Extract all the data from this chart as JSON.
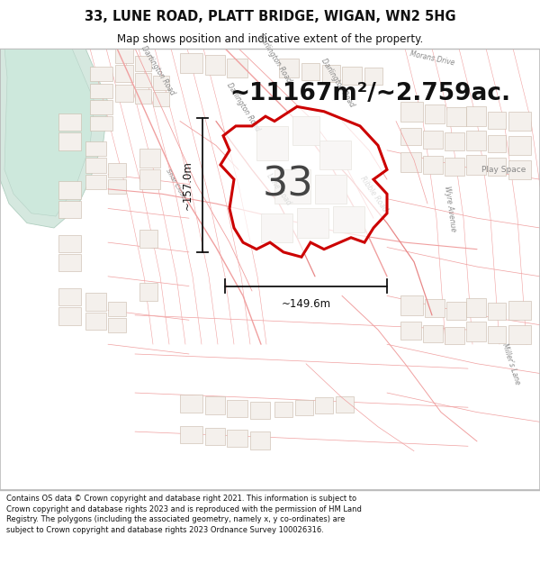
{
  "title_line1": "33, LUNE ROAD, PLATT BRIDGE, WIGAN, WN2 5HG",
  "title_line2": "Map shows position and indicative extent of the property.",
  "area_text": "~11167m²/~2.759ac.",
  "label_number": "33",
  "dim_horizontal": "~149.6m",
  "dim_vertical": "~157.0m",
  "footer_text": "Contains OS data © Crown copyright and database right 2021. This information is subject to Crown copyright and database rights 2023 and is reproduced with the permission of HM Land Registry. The polygons (including the associated geometry, namely x, y co-ordinates) are subject to Crown copyright and database rights 2023 Ordnance Survey 100026316.",
  "map_bg": "#f7f4f0",
  "road_color": "#f0a0a0",
  "road_color2": "#e88888",
  "building_fill": "#f0ebe4",
  "building_edge": "#d0b8a8",
  "bldg_gray_fill": "#e8e4de",
  "bldg_gray_edge": "#c0b8b0",
  "highlight_color": "#cc0000",
  "water_fill": "#cde3d8",
  "water_edge": "#b0cfc0",
  "canal_fill": "#d5e8df",
  "road_label_color": "#888888",
  "dim_color": "#111111",
  "area_text_color": "#111111",
  "title_bg": "#ffffff",
  "footer_bg": "#ffffff",
  "border_color": "#bbbbbb",
  "white": "#ffffff"
}
